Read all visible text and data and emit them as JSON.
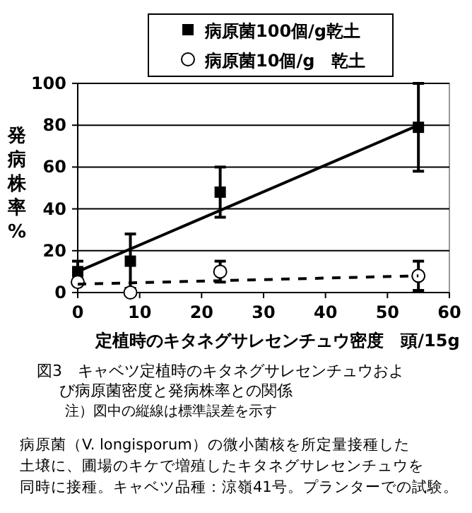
{
  "chart_data": {
    "type": "scatter",
    "title": "図3　キャベツ定植時のキタネグサレセンチュウおよび病原菌密度と発病株率との関係",
    "xlabel": "定植時のキタネグサレセンチュウ密度　頭/15g",
    "ylabel": "発病株率%",
    "xlim": [
      0,
      60
    ],
    "xticks": [
      0,
      10,
      20,
      30,
      40,
      50,
      60
    ],
    "ylim": [
      0,
      100
    ],
    "yticks": [
      0,
      20,
      40,
      60,
      80,
      100
    ],
    "grid": "y",
    "legend": "top",
    "series": [
      {
        "name": "病原菌100個/g乾土",
        "marker": "square",
        "color": "#000000",
        "x": [
          0,
          8.5,
          23,
          55
        ],
        "values": [
          10,
          15,
          48,
          79
        ],
        "errors": [
          5,
          13,
          12,
          21
        ]
      },
      {
        "name": "病原菌10個/g　乾土",
        "marker": "circle",
        "color": "#000000",
        "x": [
          0,
          8.5,
          23,
          55
        ],
        "values": [
          5,
          0,
          10,
          8
        ],
        "errors": [
          null,
          null,
          5,
          7
        ]
      },
      {
        "type": "line",
        "marker": "none",
        "line_style": "solid",
        "color": "#000000",
        "x": [
          0,
          55
        ],
        "values": [
          10,
          80
        ]
      },
      {
        "type": "line",
        "marker": "none",
        "line_style": "dashed",
        "color": "#000000",
        "x": [
          0,
          55
        ],
        "values": [
          4,
          8
        ]
      }
    ],
    "annotations": [
      "注）図中の縦線は標準誤差を示す",
      "病原菌（V. longisporum）の微小菌核を所定量接種した",
      "土壌に、圃場のキケで増殖したキタネグサレセンチュウを",
      "同時に接種。キャベツ品種：涼嶺41号。プランターでの試験。"
    ]
  }
}
